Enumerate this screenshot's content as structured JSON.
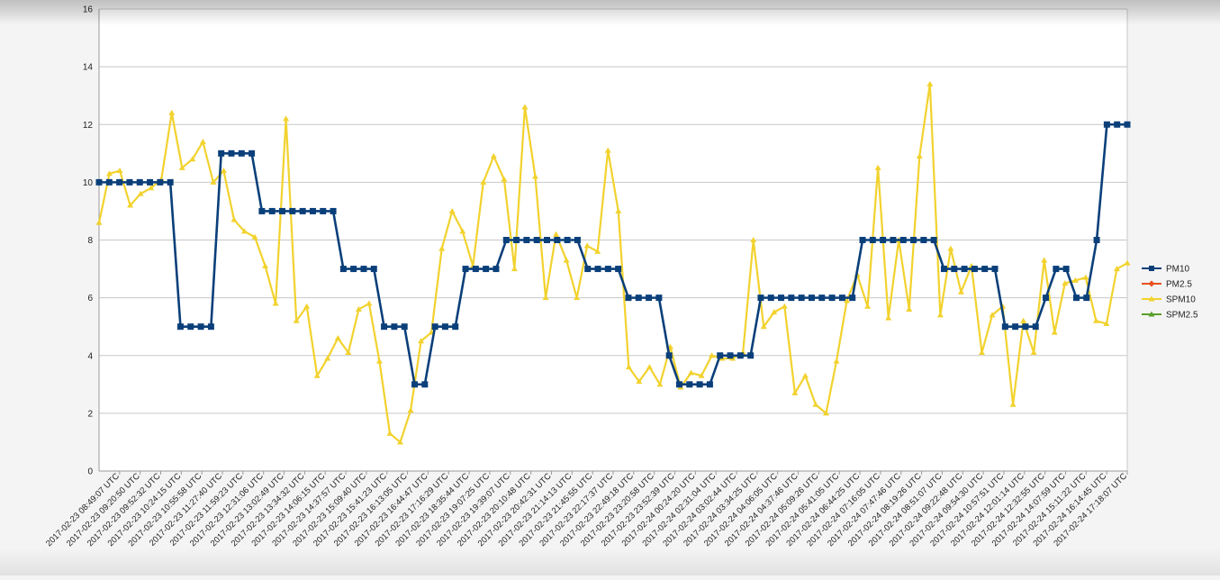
{
  "chart_data": {
    "type": "line",
    "title": "",
    "xlabel": "",
    "ylabel": "",
    "ylim": [
      0,
      16
    ],
    "yticks": [
      0,
      2,
      4,
      6,
      8,
      10,
      12,
      14,
      16
    ],
    "grid": "horizontal",
    "legend_position": "right",
    "x_tick_labels": [
      "2017-02-23 08:49:07 UTC",
      "2017-02-23 09:20:50 UTC",
      "2017-02-23 09:52:32 UTC",
      "2017-02-23 10:24:15 UTC",
      "2017-02-23 10:55:58 UTC",
      "2017-02-23 11:27:40 UTC",
      "2017-02-23 11:59:23 UTC",
      "2017-02-23 12:31:06 UTC",
      "2017-02-23 13:02:49 UTC",
      "2017-02-23 13:34:32 UTC",
      "2017-02-23 14:06:15 UTC",
      "2017-02-23 14:37:57 UTC",
      "2017-02-23 15:09:40 UTC",
      "2017-02-23 15:41:23 UTC",
      "2017-02-23 16:13:05 UTC",
      "2017-02-23 16:44:47 UTC",
      "2017-02-23 17:16:29 UTC",
      "2017-02-23 18:35:44 UTC",
      "2017-02-23 19:07:25 UTC",
      "2017-02-23 19:39:07 UTC",
      "2017-02-23 20:10:48 UTC",
      "2017-02-23 20:42:31 UTC",
      "2017-02-23 21:14:13 UTC",
      "2017-02-23 21:45:55 UTC",
      "2017-02-23 22:17:37 UTC",
      "2017-02-23 22:49:18 UTC",
      "2017-02-23 23:20:58 UTC",
      "2017-02-23 23:52:39 UTC",
      "2017-02-24 00:24:20 UTC",
      "2017-02-24 02:31:04 UTC",
      "2017-02-24 03:02:44 UTC",
      "2017-02-24 03:34:25 UTC",
      "2017-02-24 04:06:05 UTC",
      "2017-02-24 04:37:46 UTC",
      "2017-02-24 05:09:26 UTC",
      "2017-02-24 05:41:05 UTC",
      "2017-02-24 06:44:25 UTC",
      "2017-02-24 07:16:05 UTC",
      "2017-02-24 07:47:46 UTC",
      "2017-02-24 08:19:26 UTC",
      "2017-02-24 08:51:07 UTC",
      "2017-02-24 09:22:48 UTC",
      "2017-02-24 09:54:30 UTC",
      "2017-02-24 10:57:51 UTC",
      "2017-02-24 12:01:14 UTC",
      "2017-02-24 12:32:55 UTC",
      "2017-02-24 14:07:59 UTC",
      "2017-02-24 15:11:22 UTC",
      "2017-02-24 16:14:45 UTC",
      "2017-02-24 17:18:07 UTC"
    ],
    "series": [
      {
        "name": "PM10",
        "color": "#0a3f7a",
        "marker": "square",
        "values": [
          10,
          10,
          10,
          10,
          10,
          10,
          10,
          10,
          5,
          5,
          5,
          5,
          11,
          11,
          11,
          11,
          9,
          9,
          9,
          9,
          9,
          9,
          9,
          9,
          7,
          7,
          7,
          7,
          5,
          5,
          5,
          3,
          3,
          5,
          5,
          5,
          7,
          7,
          7,
          7,
          8,
          8,
          8,
          8,
          8,
          8,
          8,
          8,
          7,
          7,
          7,
          7,
          6,
          6,
          6,
          6,
          4,
          3,
          3,
          3,
          3,
          4,
          4,
          4,
          4,
          6,
          6,
          6,
          6,
          6,
          6,
          6,
          6,
          6,
          6,
          8,
          8,
          8,
          8,
          8,
          8,
          8,
          8,
          7,
          7,
          7,
          7,
          7,
          7,
          5,
          5,
          5,
          5,
          6,
          7,
          7,
          6,
          6,
          8,
          12,
          12,
          12
        ]
      },
      {
        "name": "PM2.5",
        "color": "#e8501e",
        "marker": "diamond",
        "values": []
      },
      {
        "name": "SPM10",
        "color": "#f2d22e",
        "marker": "triangle",
        "values": [
          8.6,
          10.3,
          10.4,
          9.2,
          9.6,
          9.8,
          10.1,
          12.4,
          10.5,
          10.8,
          11.4,
          10.0,
          10.4,
          8.7,
          8.3,
          8.1,
          7.1,
          5.8,
          12.2,
          5.2,
          5.7,
          3.3,
          3.9,
          4.6,
          4.1,
          5.6,
          5.8,
          3.8,
          1.3,
          1.0,
          2.1,
          4.5,
          4.8,
          7.7,
          9.0,
          8.3,
          7.1,
          10.0,
          10.9,
          10.1,
          7.0,
          12.6,
          10.2,
          6.0,
          8.2,
          7.3,
          6.0,
          7.8,
          7.6,
          11.1,
          9.0,
          3.6,
          3.1,
          3.6,
          3.0,
          4.3,
          2.9,
          3.4,
          3.3,
          4.0,
          3.9,
          3.9,
          4.1,
          8.0,
          5.0,
          5.5,
          5.7,
          2.7,
          3.3,
          2.3,
          2.0,
          3.8,
          5.9,
          6.8,
          5.7,
          10.5,
          5.3,
          8.0,
          5.6,
          10.9,
          13.4,
          5.4,
          7.7,
          6.2,
          7.1,
          4.1,
          5.4,
          5.7,
          2.3,
          5.2,
          4.1,
          7.3,
          4.8,
          6.5,
          6.6,
          6.7,
          5.2,
          5.1,
          7.0,
          7.2
        ]
      },
      {
        "name": "SPM2.5",
        "color": "#5aa02c",
        "marker": "triangle",
        "values": []
      }
    ]
  }
}
